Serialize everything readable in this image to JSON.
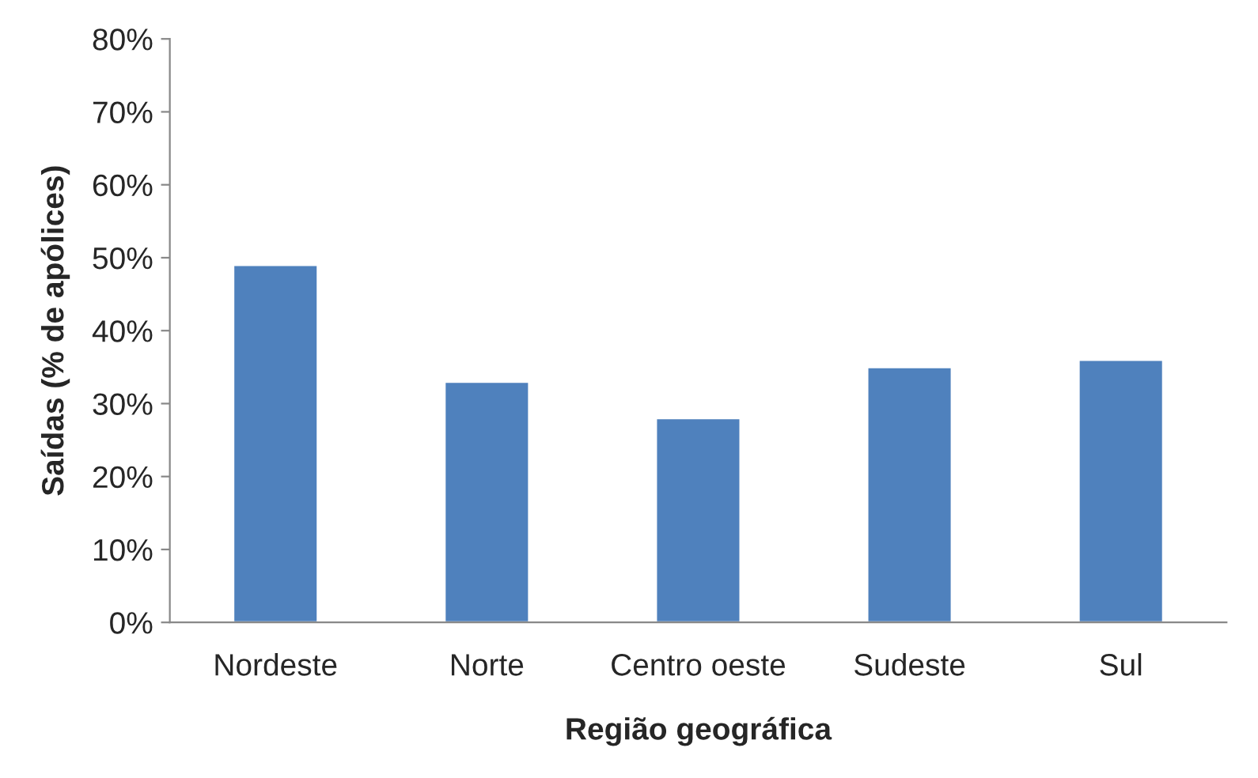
{
  "chart_data": {
    "type": "bar",
    "categories": [
      "Nordeste",
      "Norte",
      "Centro oeste",
      "Sudeste",
      "Sul"
    ],
    "values": [
      49,
      33,
      28,
      35,
      36
    ],
    "color": "#4f81bd",
    "xlabel": "Região geográfica",
    "ylabel": "Saídas (% de apólices)",
    "ylim": [
      0,
      80
    ],
    "yticks": [
      {
        "value": 0,
        "label": "0%"
      },
      {
        "value": 10,
        "label": "10%"
      },
      {
        "value": 20,
        "label": "20%"
      },
      {
        "value": 30,
        "label": "30%"
      },
      {
        "value": 40,
        "label": "40%"
      },
      {
        "value": 50,
        "label": "50%"
      },
      {
        "value": 60,
        "label": "60%"
      },
      {
        "value": 70,
        "label": "70%"
      },
      {
        "value": 80,
        "label": "80%"
      }
    ],
    "grid": false
  }
}
